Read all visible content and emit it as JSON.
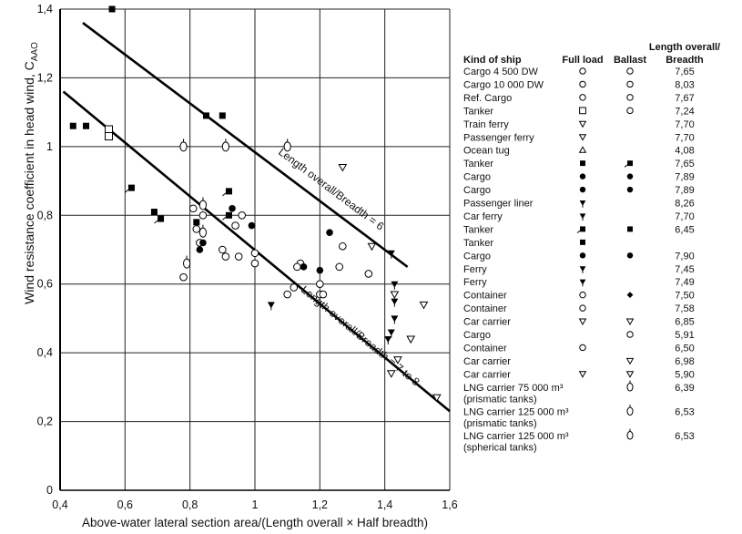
{
  "chart_data": {
    "type": "scatter",
    "xlabel": "Above-water lateral section area/(Length overall × Half breadth)",
    "ylabel": "Wind resistance coefficient in head wind, C",
    "ylabel_sub": "AAO",
    "xlim": [
      0.4,
      1.6
    ],
    "ylim": [
      0,
      1.4
    ],
    "xticks": [
      0.4,
      0.6,
      0.8,
      1.0,
      1.2,
      1.4,
      1.6
    ],
    "xtick_labels": [
      "0,4",
      "0,6",
      "0,8",
      "1",
      "1,2",
      "1,4",
      "1,6"
    ],
    "yticks": [
      0,
      0.2,
      0.4,
      0.6,
      0.8,
      1.0,
      1.2,
      1.4
    ],
    "ytick_labels": [
      "0",
      "0,2",
      "0,4",
      "0,6",
      "0,8",
      "1",
      "1,2",
      "1,4"
    ],
    "grid": true,
    "lines": [
      {
        "name": "Length overall/Breadth = 6",
        "x": [
          0.47,
          1.47
        ],
        "y": [
          1.36,
          0.65
        ]
      },
      {
        "name": "Length overall/Breadth = 7 to 8",
        "x": [
          0.41,
          1.6
        ],
        "y": [
          1.16,
          0.23
        ]
      }
    ],
    "points": [
      {
        "x": 0.56,
        "y": 1.4,
        "marker": "sq"
      },
      {
        "x": 0.44,
        "y": 1.06,
        "marker": "sq"
      },
      {
        "x": 0.48,
        "y": 1.06,
        "marker": "sq"
      },
      {
        "x": 0.85,
        "y": 1.09,
        "marker": "sq"
      },
      {
        "x": 0.9,
        "y": 1.09,
        "marker": "sq"
      },
      {
        "x": 0.62,
        "y": 0.88,
        "marker": "sqt"
      },
      {
        "x": 0.69,
        "y": 0.81,
        "marker": "sq"
      },
      {
        "x": 0.71,
        "y": 0.79,
        "marker": "sqt"
      },
      {
        "x": 0.82,
        "y": 0.78,
        "marker": "sq"
      },
      {
        "x": 0.92,
        "y": 0.87,
        "marker": "sqt"
      },
      {
        "x": 0.92,
        "y": 0.8,
        "marker": "sqt"
      },
      {
        "x": 0.55,
        "y": 1.05,
        "marker": "osq"
      },
      {
        "x": 0.55,
        "y": 1.03,
        "marker": "osq"
      },
      {
        "x": 0.78,
        "y": 1.0,
        "marker": "cs"
      },
      {
        "x": 0.91,
        "y": 1.0,
        "marker": "cs"
      },
      {
        "x": 1.1,
        "y": 1.0,
        "marker": "cs"
      },
      {
        "x": 0.81,
        "y": 0.82,
        "marker": "oc"
      },
      {
        "x": 0.84,
        "y": 0.83,
        "marker": "cs"
      },
      {
        "x": 0.84,
        "y": 0.8,
        "marker": "oc"
      },
      {
        "x": 0.82,
        "y": 0.76,
        "marker": "oc"
      },
      {
        "x": 0.83,
        "y": 0.72,
        "marker": "oc"
      },
      {
        "x": 0.84,
        "y": 0.75,
        "marker": "cs"
      },
      {
        "x": 0.79,
        "y": 0.66,
        "marker": "cs"
      },
      {
        "x": 0.78,
        "y": 0.62,
        "marker": "oc"
      },
      {
        "x": 0.9,
        "y": 0.7,
        "marker": "oc"
      },
      {
        "x": 0.91,
        "y": 0.68,
        "marker": "oc"
      },
      {
        "x": 0.94,
        "y": 0.77,
        "marker": "oc"
      },
      {
        "x": 0.96,
        "y": 0.8,
        "marker": "oc"
      },
      {
        "x": 0.95,
        "y": 0.68,
        "marker": "oc"
      },
      {
        "x": 1.0,
        "y": 0.69,
        "marker": "oc"
      },
      {
        "x": 1.0,
        "y": 0.66,
        "marker": "oc"
      },
      {
        "x": 1.14,
        "y": 0.66,
        "marker": "oc"
      },
      {
        "x": 1.13,
        "y": 0.65,
        "marker": "oc"
      },
      {
        "x": 1.12,
        "y": 0.59,
        "marker": "oc"
      },
      {
        "x": 1.1,
        "y": 0.57,
        "marker": "oc"
      },
      {
        "x": 1.2,
        "y": 0.6,
        "marker": "oc"
      },
      {
        "x": 1.2,
        "y": 0.57,
        "marker": "oc"
      },
      {
        "x": 1.21,
        "y": 0.57,
        "marker": "oc"
      },
      {
        "x": 1.26,
        "y": 0.65,
        "marker": "oc"
      },
      {
        "x": 1.27,
        "y": 0.71,
        "marker": "oc"
      },
      {
        "x": 1.35,
        "y": 0.63,
        "marker": "oc"
      },
      {
        "x": 0.83,
        "y": 0.7,
        "marker": "fc"
      },
      {
        "x": 0.84,
        "y": 0.72,
        "marker": "fc"
      },
      {
        "x": 0.99,
        "y": 0.77,
        "marker": "fc"
      },
      {
        "x": 1.15,
        "y": 0.65,
        "marker": "fc"
      },
      {
        "x": 1.2,
        "y": 0.64,
        "marker": "fc"
      },
      {
        "x": 1.23,
        "y": 0.75,
        "marker": "fc"
      },
      {
        "x": 0.93,
        "y": 0.82,
        "marker": "fc"
      },
      {
        "x": 1.05,
        "y": 0.54,
        "marker": "ft"
      },
      {
        "x": 1.42,
        "y": 0.69,
        "marker": "ft"
      },
      {
        "x": 1.43,
        "y": 0.6,
        "marker": "ft"
      },
      {
        "x": 1.43,
        "y": 0.55,
        "marker": "ft"
      },
      {
        "x": 1.43,
        "y": 0.5,
        "marker": "ft"
      },
      {
        "x": 1.42,
        "y": 0.46,
        "marker": "ft"
      },
      {
        "x": 1.41,
        "y": 0.44,
        "marker": "ft"
      },
      {
        "x": 1.27,
        "y": 0.94,
        "marker": "ot"
      },
      {
        "x": 1.36,
        "y": 0.71,
        "marker": "ot"
      },
      {
        "x": 1.43,
        "y": 0.57,
        "marker": "ot"
      },
      {
        "x": 1.52,
        "y": 0.54,
        "marker": "ot"
      },
      {
        "x": 1.48,
        "y": 0.44,
        "marker": "ot"
      },
      {
        "x": 1.44,
        "y": 0.38,
        "marker": "ot"
      },
      {
        "x": 1.56,
        "y": 0.27,
        "marker": "ot"
      },
      {
        "x": 1.42,
        "y": 0.34,
        "marker": "ot"
      }
    ],
    "annotations": [
      {
        "text": "Length overall/Breadth = 6",
        "x": 1.07,
        "y": 0.98
      },
      {
        "text": "Length overall/Breadth = 7 to 8",
        "x": 1.14,
        "y": 0.58
      }
    ],
    "legend": {
      "headers": {
        "kind": "Kind of ship",
        "full": "Full load",
        "ballast": "Ballast",
        "ratio": [
          "Length overall/",
          "Breadth"
        ]
      },
      "rows": [
        {
          "kind": [
            "Cargo 4 500 DW"
          ],
          "full": "oc",
          "ballast": "oc",
          "ratio": "7,65"
        },
        {
          "kind": [
            "Cargo 10 000 DW"
          ],
          "full": "oc",
          "ballast": "oc",
          "ratio": "8,03"
        },
        {
          "kind": [
            "Ref. Cargo"
          ],
          "full": "oc",
          "ballast": "oc",
          "ratio": "7,67"
        },
        {
          "kind": [
            "Tanker"
          ],
          "full": "osq",
          "ballast": "oc",
          "ratio": "7,24"
        },
        {
          "kind": [
            "Train ferry"
          ],
          "full": "ot",
          "ballast": "",
          "ratio": "7,70"
        },
        {
          "kind": [
            "Passenger ferry"
          ],
          "full": "ot",
          "ballast": "",
          "ratio": "7,70"
        },
        {
          "kind": [
            "Ocean tug"
          ],
          "full": "otu",
          "ballast": "",
          "ratio": "4,08"
        },
        {
          "kind": [
            "Tanker"
          ],
          "full": "sq",
          "ballast": "sqt",
          "ratio": "7,65"
        },
        {
          "kind": [
            "Cargo"
          ],
          "full": "fc",
          "ballast": "fc",
          "ratio": "7,89"
        },
        {
          "kind": [
            "Cargo"
          ],
          "full": "fc",
          "ballast": "fc",
          "ratio": "7,89"
        },
        {
          "kind": [
            "Passenger liner"
          ],
          "full": "ft",
          "ballast": "",
          "ratio": "8,26"
        },
        {
          "kind": [
            "Car ferry"
          ],
          "full": "ft",
          "ballast": "",
          "ratio": "7,70"
        },
        {
          "kind": [
            "Tanker"
          ],
          "full": "sqt",
          "ballast": "sq",
          "ratio": "6,45"
        },
        {
          "kind": [
            "Tanker"
          ],
          "full": "sq",
          "ballast": "",
          "ratio": ""
        },
        {
          "kind": [
            "Cargo"
          ],
          "full": "fc",
          "ballast": "fc",
          "ratio": "7,90"
        },
        {
          "kind": [
            "Ferry"
          ],
          "full": "ft",
          "ballast": "",
          "ratio": "7,45"
        },
        {
          "kind": [
            "Ferry"
          ],
          "full": "ft",
          "ballast": "",
          "ratio": "7,49"
        },
        {
          "kind": [
            "Container"
          ],
          "full": "oc",
          "ballast": "fd",
          "ratio": "7,50"
        },
        {
          "kind": [
            "Container"
          ],
          "full": "oc",
          "ballast": "",
          "ratio": "7,58"
        },
        {
          "kind": [
            "Car carrier"
          ],
          "full": "ot",
          "ballast": "ot",
          "ratio": "6,85"
        },
        {
          "kind": [
            "Cargo"
          ],
          "full": "",
          "ballast": "oc",
          "ratio": "5,91"
        },
        {
          "kind": [
            "Container"
          ],
          "full": "oc",
          "ballast": "",
          "ratio": "6,50"
        },
        {
          "kind": [
            "Car carrier"
          ],
          "full": "",
          "ballast": "ot",
          "ratio": "6,98"
        },
        {
          "kind": [
            "Car carrier"
          ],
          "full": "ot",
          "ballast": "ot",
          "ratio": "5,90"
        },
        {
          "kind": [
            "LNG carrier 75 000 m³",
            "(prismatic tanks)"
          ],
          "full": "",
          "ballast": "cs",
          "ratio": "6,39"
        },
        {
          "kind": [
            "LNG carrier 125 000 m³",
            "(prismatic tanks)"
          ],
          "full": "",
          "ballast": "cs",
          "ratio": "6,53"
        },
        {
          "kind": [
            "LNG carrier 125 000 m³",
            "(spherical tanks)"
          ],
          "full": "",
          "ballast": "cs",
          "ratio": "6,53"
        }
      ]
    }
  }
}
